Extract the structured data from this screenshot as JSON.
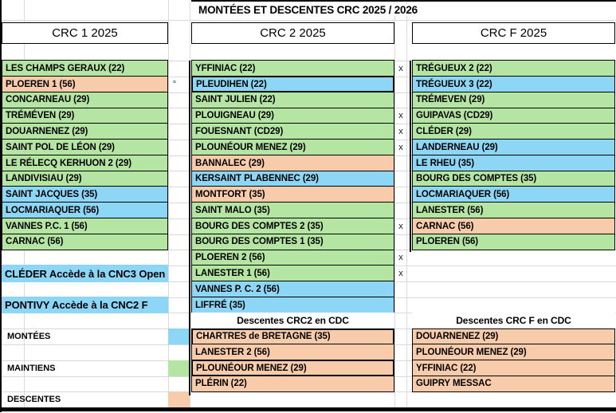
{
  "title": "MONTÉES ET DESCENTES CRC 2025 / 2026",
  "colors": {
    "monte": "#8dd6f6",
    "maintien": "#b4e5a2",
    "descente": "#f8cbab",
    "gridline": "#d9d9d9"
  },
  "columns": [
    {
      "header": "CRC 1 2025",
      "rows": [
        {
          "text": "LES CHAMPS GERAUX (22)",
          "fill": "maintien"
        },
        {
          "text": "PLOEREN 1 (56)",
          "fill": "descente",
          "mark": "°"
        },
        {
          "text": "CONCARNEAU (29)",
          "fill": "maintien"
        },
        {
          "text": "TRÉMÉVEN (29)",
          "fill": "maintien"
        },
        {
          "text": "DOUARNENEZ (29)",
          "fill": "maintien"
        },
        {
          "text": "SAINT POL DE LÉON (29)",
          "fill": "maintien"
        },
        {
          "text": "LE RÉLECQ KERHUON 2 (29)",
          "fill": "maintien"
        },
        {
          "text": "LANDIVISIAU (29)",
          "fill": "maintien"
        },
        {
          "text": "SAINT JACQUES (35)",
          "fill": "monte"
        },
        {
          "text": "LOCMARIAQUER (56)",
          "fill": "monte"
        },
        {
          "text": "VANNES P.C. 1 (56)",
          "fill": "maintien"
        },
        {
          "text": "CARNAC (56)",
          "fill": "maintien"
        },
        {
          "text": "",
          "fill": ""
        },
        {
          "text": "CLÉDER Accède à la CNC3 Open",
          "fill": "monte",
          "kind": "big"
        },
        {
          "text": "",
          "fill": ""
        },
        {
          "text": "PONTIVY Accède à la CNC2 F",
          "fill": "monte",
          "kind": "big"
        },
        {
          "text": "",
          "fill": ""
        },
        {
          "text": "",
          "fill": ""
        },
        {
          "text": "",
          "fill": ""
        },
        {
          "text": "",
          "fill": ""
        },
        {
          "text": "",
          "fill": ""
        },
        {
          "text": "",
          "fill": ""
        }
      ]
    },
    {
      "header": "CRC 2 2025",
      "rows": [
        {
          "text": "YFFINIAC (22)",
          "fill": "maintien",
          "mark": "x"
        },
        {
          "text": "PLEUDIHEN (22)",
          "fill": "monte",
          "thick": true
        },
        {
          "text": "SAINT JULIEN (22)",
          "fill": "maintien"
        },
        {
          "text": "PLOUIGNEAU (29)",
          "fill": "maintien",
          "mark": "x"
        },
        {
          "text": "FOUESNANT (CD29)",
          "fill": "maintien",
          "mark": "x"
        },
        {
          "text": "PLOUNÉOUR MENEZ (29)",
          "fill": "maintien",
          "mark": "x"
        },
        {
          "text": "BANNALEC (29)",
          "fill": "descente"
        },
        {
          "text": "KERSAINT PLABENNEC (29)",
          "fill": "monte"
        },
        {
          "text": "MONTFORT (35)",
          "fill": "descente"
        },
        {
          "text": "SAINT MALO (35)",
          "fill": "maintien"
        },
        {
          "text": "BOURG DES COMPTES 2 (35)",
          "fill": "maintien",
          "mark": "x"
        },
        {
          "text": "BOURG DES COMPTES 1 (35)",
          "fill": "maintien"
        },
        {
          "text": "PLOEREN 2 (56)",
          "fill": "maintien",
          "mark": "x"
        },
        {
          "text": "LANESTER 1 (56)",
          "fill": "maintien",
          "mark": "x"
        },
        {
          "text": "VANNES P. C. 2 (56)",
          "fill": "monte"
        },
        {
          "text": "LIFFRÉ (35)",
          "fill": "monte"
        },
        {
          "text": "Descentes CRC2 en CDC",
          "fill": "",
          "kind": "section"
        },
        {
          "text": "CHARTRES de BRETAGNE (35)",
          "fill": "descente",
          "thick": true
        },
        {
          "text": "LANESTER 2 (56)",
          "fill": "descente"
        },
        {
          "text": "PLOUNÉOUR MENEZ (29)",
          "fill": "descente",
          "thick": true
        },
        {
          "text": "PLÉRIN (22)",
          "fill": "descente"
        },
        {
          "text": "",
          "fill": ""
        }
      ]
    },
    {
      "header": "CRC F 2025",
      "rows": [
        {
          "text": "TRÉGUEUX 2 (22)",
          "fill": "maintien"
        },
        {
          "text": "TRÉGUEUX 3 (22)",
          "fill": "monte"
        },
        {
          "text": "TRÉMEVEN (29)",
          "fill": "maintien"
        },
        {
          "text": "GUIPAVAS (CD29)",
          "fill": "maintien"
        },
        {
          "text": "CLÉDER (29)",
          "fill": "maintien"
        },
        {
          "text": "LANDERNEAU (29)",
          "fill": "monte"
        },
        {
          "text": "LE RHEU (35)",
          "fill": "monte"
        },
        {
          "text": "BOURG DES COMPTES (35)",
          "fill": "maintien"
        },
        {
          "text": "LOCMARIAQUER (56)",
          "fill": "monte"
        },
        {
          "text": "LANESTER (56)",
          "fill": "maintien"
        },
        {
          "text": "CARNAC (56)",
          "fill": "descente"
        },
        {
          "text": "PLOEREN (56)",
          "fill": "maintien"
        },
        {
          "text": "",
          "fill": ""
        },
        {
          "text": "",
          "fill": ""
        },
        {
          "text": "",
          "fill": ""
        },
        {
          "text": "",
          "fill": ""
        },
        {
          "text": "Descentes CRC F en CDC",
          "fill": "",
          "kind": "section"
        },
        {
          "text": "DOUARNENEZ (29)",
          "fill": "descente"
        },
        {
          "text": "PLOUNÉOUR MENEZ (29)",
          "fill": "descente"
        },
        {
          "text": "YFFINIAC (22)",
          "fill": "descente"
        },
        {
          "text": "GUIPRY MESSAC",
          "fill": "descente"
        },
        {
          "text": "",
          "fill": ""
        }
      ]
    }
  ],
  "legend": {
    "items": [
      {
        "key": "montees",
        "label": "MONTÉES",
        "color": "monte",
        "row": 17
      },
      {
        "key": "maintiens",
        "label": "MAINTIENS",
        "color": "maintien",
        "row": 19
      },
      {
        "key": "descentes",
        "label": "DESCENTES",
        "color": "descente",
        "row": 21
      }
    ]
  }
}
